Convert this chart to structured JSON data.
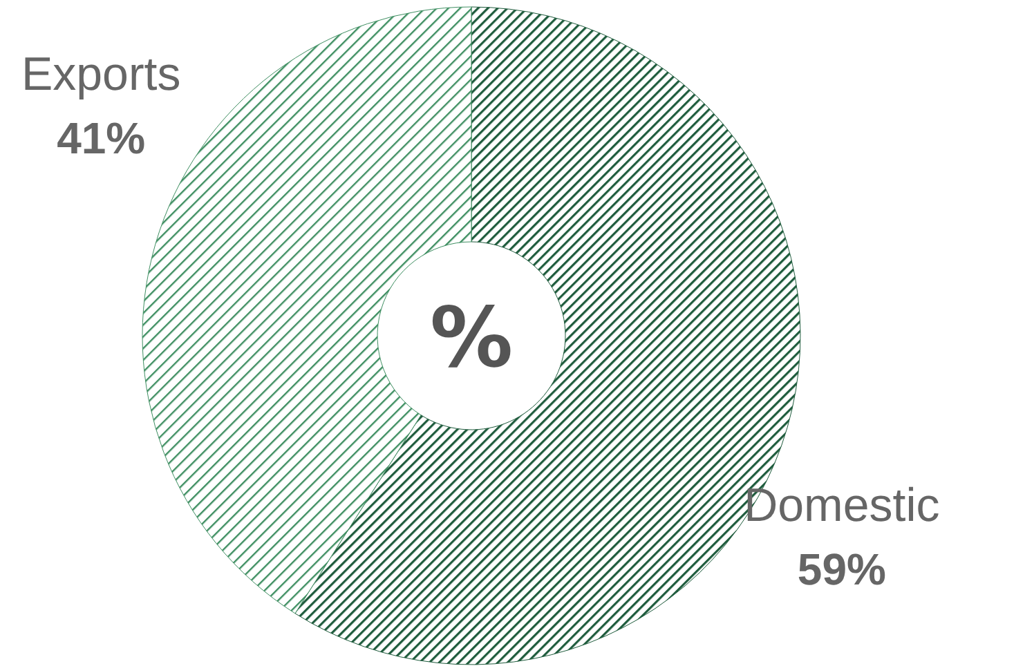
{
  "chart_data": {
    "type": "donut",
    "title": "%",
    "categories": [
      "Domestic",
      "Exports"
    ],
    "values": [
      59,
      41
    ],
    "colors": [
      "#1f5c3d",
      "#3f8f62"
    ],
    "value_labels": [
      "59%",
      "41%"
    ]
  }
}
